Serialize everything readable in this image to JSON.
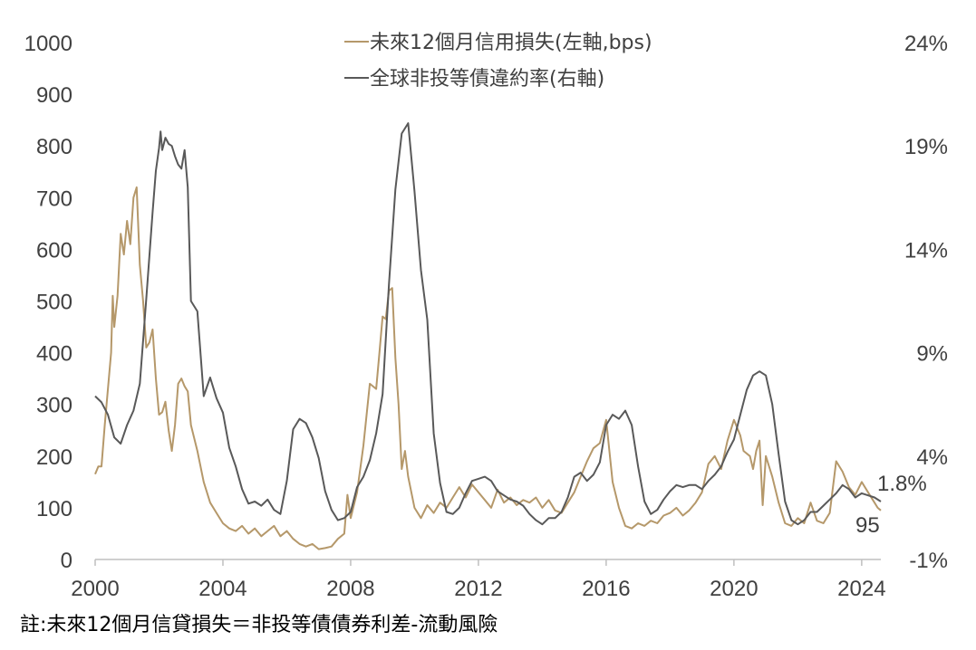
{
  "chart_data": {
    "type": "line",
    "title": "",
    "y_left": {
      "min": 0,
      "max": 1000,
      "ticks": [
        "0",
        "100",
        "200",
        "300",
        "400",
        "500",
        "600",
        "700",
        "800",
        "900",
        "1000"
      ]
    },
    "y_right": {
      "min": -1,
      "max": 24,
      "ticks": [
        "-1%",
        "4%",
        "9%",
        "14%",
        "19%",
        "24%"
      ]
    },
    "x_ticks": [
      "2000",
      "2004",
      "2008",
      "2012",
      "2016",
      "2020",
      "2024"
    ],
    "x_range": [
      2000,
      2024.6
    ],
    "grid": false,
    "legend_position": "top-center",
    "colors": {
      "credit_loss": "#b5986a",
      "default_rate": "#595959"
    },
    "end_labels": {
      "default_rate": "1.8%",
      "credit_loss": "95"
    },
    "series": [
      {
        "key": "credit_loss",
        "name": "未來12個月信用損失(左軸,bps)",
        "axis": "left",
        "points": [
          [
            2000.0,
            165
          ],
          [
            2000.1,
            180
          ],
          [
            2000.2,
            180
          ],
          [
            2000.3,
            260
          ],
          [
            2000.4,
            330
          ],
          [
            2000.5,
            400
          ],
          [
            2000.55,
            510
          ],
          [
            2000.6,
            450
          ],
          [
            2000.7,
            510
          ],
          [
            2000.8,
            630
          ],
          [
            2000.9,
            590
          ],
          [
            2001.0,
            655
          ],
          [
            2001.1,
            610
          ],
          [
            2001.2,
            700
          ],
          [
            2001.3,
            720
          ],
          [
            2001.4,
            570
          ],
          [
            2001.5,
            500
          ],
          [
            2001.6,
            410
          ],
          [
            2001.7,
            420
          ],
          [
            2001.8,
            445
          ],
          [
            2001.9,
            350
          ],
          [
            2002.0,
            280
          ],
          [
            2002.1,
            285
          ],
          [
            2002.2,
            305
          ],
          [
            2002.3,
            250
          ],
          [
            2002.4,
            210
          ],
          [
            2002.5,
            260
          ],
          [
            2002.6,
            340
          ],
          [
            2002.7,
            350
          ],
          [
            2002.8,
            335
          ],
          [
            2002.9,
            325
          ],
          [
            2003.0,
            260
          ],
          [
            2003.2,
            210
          ],
          [
            2003.4,
            150
          ],
          [
            2003.6,
            110
          ],
          [
            2003.8,
            90
          ],
          [
            2004.0,
            70
          ],
          [
            2004.2,
            60
          ],
          [
            2004.4,
            55
          ],
          [
            2004.6,
            65
          ],
          [
            2004.8,
            50
          ],
          [
            2005.0,
            60
          ],
          [
            2005.2,
            45
          ],
          [
            2005.4,
            55
          ],
          [
            2005.6,
            65
          ],
          [
            2005.8,
            45
          ],
          [
            2006.0,
            55
          ],
          [
            2006.2,
            40
          ],
          [
            2006.4,
            30
          ],
          [
            2006.6,
            25
          ],
          [
            2006.8,
            30
          ],
          [
            2007.0,
            20
          ],
          [
            2007.2,
            22
          ],
          [
            2007.4,
            25
          ],
          [
            2007.6,
            40
          ],
          [
            2007.8,
            50
          ],
          [
            2007.9,
            125
          ],
          [
            2008.0,
            80
          ],
          [
            2008.2,
            130
          ],
          [
            2008.4,
            220
          ],
          [
            2008.6,
            340
          ],
          [
            2008.8,
            330
          ],
          [
            2008.9,
            400
          ],
          [
            2009.0,
            470
          ],
          [
            2009.1,
            465
          ],
          [
            2009.2,
            520
          ],
          [
            2009.3,
            525
          ],
          [
            2009.4,
            390
          ],
          [
            2009.5,
            300
          ],
          [
            2009.6,
            175
          ],
          [
            2009.7,
            210
          ],
          [
            2009.8,
            160
          ],
          [
            2010.0,
            100
          ],
          [
            2010.2,
            80
          ],
          [
            2010.4,
            105
          ],
          [
            2010.6,
            90
          ],
          [
            2010.8,
            110
          ],
          [
            2011.0,
            100
          ],
          [
            2011.2,
            120
          ],
          [
            2011.4,
            140
          ],
          [
            2011.6,
            120
          ],
          [
            2011.8,
            145
          ],
          [
            2012.0,
            130
          ],
          [
            2012.2,
            115
          ],
          [
            2012.4,
            100
          ],
          [
            2012.6,
            135
          ],
          [
            2012.8,
            110
          ],
          [
            2013.0,
            120
          ],
          [
            2013.2,
            105
          ],
          [
            2013.4,
            115
          ],
          [
            2013.6,
            110
          ],
          [
            2013.8,
            120
          ],
          [
            2014.0,
            100
          ],
          [
            2014.2,
            115
          ],
          [
            2014.4,
            95
          ],
          [
            2014.6,
            90
          ],
          [
            2014.8,
            110
          ],
          [
            2015.0,
            130
          ],
          [
            2015.2,
            160
          ],
          [
            2015.4,
            190
          ],
          [
            2015.6,
            215
          ],
          [
            2015.8,
            225
          ],
          [
            2016.0,
            270
          ],
          [
            2016.2,
            150
          ],
          [
            2016.4,
            100
          ],
          [
            2016.6,
            65
          ],
          [
            2016.8,
            60
          ],
          [
            2017.0,
            70
          ],
          [
            2017.2,
            65
          ],
          [
            2017.4,
            75
          ],
          [
            2017.6,
            70
          ],
          [
            2017.8,
            85
          ],
          [
            2018.0,
            90
          ],
          [
            2018.2,
            100
          ],
          [
            2018.4,
            85
          ],
          [
            2018.6,
            95
          ],
          [
            2018.8,
            110
          ],
          [
            2019.0,
            130
          ],
          [
            2019.2,
            185
          ],
          [
            2019.4,
            200
          ],
          [
            2019.6,
            175
          ],
          [
            2019.8,
            230
          ],
          [
            2020.0,
            270
          ],
          [
            2020.2,
            240
          ],
          [
            2020.3,
            210
          ],
          [
            2020.5,
            200
          ],
          [
            2020.6,
            175
          ],
          [
            2020.7,
            210
          ],
          [
            2020.8,
            230
          ],
          [
            2020.9,
            105
          ],
          [
            2021.0,
            200
          ],
          [
            2021.2,
            160
          ],
          [
            2021.4,
            110
          ],
          [
            2021.6,
            70
          ],
          [
            2021.8,
            65
          ],
          [
            2022.0,
            80
          ],
          [
            2022.2,
            70
          ],
          [
            2022.4,
            110
          ],
          [
            2022.6,
            75
          ],
          [
            2022.8,
            70
          ],
          [
            2023.0,
            90
          ],
          [
            2023.2,
            190
          ],
          [
            2023.4,
            170
          ],
          [
            2023.6,
            140
          ],
          [
            2023.8,
            125
          ],
          [
            2024.0,
            150
          ],
          [
            2024.2,
            130
          ],
          [
            2024.4,
            110
          ],
          [
            2024.5,
            100
          ],
          [
            2024.6,
            95
          ]
        ]
      },
      {
        "key": "default_rate",
        "name": "全球非投等債違約率(右軸)",
        "axis": "right",
        "points": [
          [
            2000.0,
            6.9
          ],
          [
            2000.2,
            6.6
          ],
          [
            2000.4,
            6.0
          ],
          [
            2000.6,
            4.9
          ],
          [
            2000.8,
            4.6
          ],
          [
            2001.0,
            5.5
          ],
          [
            2001.2,
            6.2
          ],
          [
            2001.4,
            7.5
          ],
          [
            2001.6,
            11.6
          ],
          [
            2001.8,
            15.8
          ],
          [
            2001.9,
            17.8
          ],
          [
            2002.0,
            18.9
          ],
          [
            2002.05,
            19.7
          ],
          [
            2002.1,
            18.8
          ],
          [
            2002.2,
            19.4
          ],
          [
            2002.3,
            19.1
          ],
          [
            2002.4,
            19.0
          ],
          [
            2002.5,
            18.5
          ],
          [
            2002.6,
            18.1
          ],
          [
            2002.7,
            17.9
          ],
          [
            2002.8,
            18.8
          ],
          [
            2002.9,
            17.0
          ],
          [
            2003.0,
            11.5
          ],
          [
            2003.2,
            11.0
          ],
          [
            2003.4,
            6.9
          ],
          [
            2003.6,
            7.8
          ],
          [
            2003.8,
            6.8
          ],
          [
            2004.0,
            6.1
          ],
          [
            2004.2,
            4.4
          ],
          [
            2004.4,
            3.5
          ],
          [
            2004.6,
            2.4
          ],
          [
            2004.8,
            1.7
          ],
          [
            2005.0,
            1.8
          ],
          [
            2005.2,
            1.6
          ],
          [
            2005.4,
            1.9
          ],
          [
            2005.6,
            1.4
          ],
          [
            2005.8,
            1.2
          ],
          [
            2006.0,
            2.8
          ],
          [
            2006.2,
            5.3
          ],
          [
            2006.4,
            5.8
          ],
          [
            2006.6,
            5.6
          ],
          [
            2006.8,
            4.9
          ],
          [
            2007.0,
            3.9
          ],
          [
            2007.2,
            2.3
          ],
          [
            2007.4,
            1.4
          ],
          [
            2007.6,
            0.9
          ],
          [
            2007.8,
            1.0
          ],
          [
            2008.0,
            1.3
          ],
          [
            2008.2,
            2.5
          ],
          [
            2008.4,
            3.0
          ],
          [
            2008.6,
            3.8
          ],
          [
            2008.8,
            5.1
          ],
          [
            2009.0,
            7.0
          ],
          [
            2009.2,
            12.3
          ],
          [
            2009.4,
            16.9
          ],
          [
            2009.6,
            19.6
          ],
          [
            2009.8,
            20.1
          ],
          [
            2010.0,
            16.8
          ],
          [
            2010.2,
            13.0
          ],
          [
            2010.4,
            10.6
          ],
          [
            2010.6,
            5.1
          ],
          [
            2010.8,
            2.7
          ],
          [
            2011.0,
            1.3
          ],
          [
            2011.2,
            1.2
          ],
          [
            2011.4,
            1.5
          ],
          [
            2011.6,
            2.2
          ],
          [
            2011.8,
            2.8
          ],
          [
            2012.0,
            2.9
          ],
          [
            2012.2,
            3.0
          ],
          [
            2012.4,
            2.8
          ],
          [
            2012.6,
            2.3
          ],
          [
            2012.8,
            2.1
          ],
          [
            2013.0,
            1.9
          ],
          [
            2013.2,
            1.8
          ],
          [
            2013.4,
            1.6
          ],
          [
            2013.6,
            1.2
          ],
          [
            2013.8,
            0.9
          ],
          [
            2014.0,
            0.7
          ],
          [
            2014.2,
            1.0
          ],
          [
            2014.4,
            1.0
          ],
          [
            2014.6,
            1.3
          ],
          [
            2014.8,
            2.0
          ],
          [
            2015.0,
            3.0
          ],
          [
            2015.2,
            3.2
          ],
          [
            2015.4,
            2.8
          ],
          [
            2015.6,
            3.1
          ],
          [
            2015.8,
            3.7
          ],
          [
            2016.0,
            5.5
          ],
          [
            2016.2,
            6.0
          ],
          [
            2016.4,
            5.8
          ],
          [
            2016.6,
            6.2
          ],
          [
            2016.8,
            5.5
          ],
          [
            2017.0,
            3.5
          ],
          [
            2017.2,
            1.8
          ],
          [
            2017.4,
            1.2
          ],
          [
            2017.6,
            1.4
          ],
          [
            2017.8,
            1.9
          ],
          [
            2018.0,
            2.3
          ],
          [
            2018.2,
            2.6
          ],
          [
            2018.4,
            2.5
          ],
          [
            2018.6,
            2.6
          ],
          [
            2018.8,
            2.6
          ],
          [
            2019.0,
            2.4
          ],
          [
            2019.2,
            2.8
          ],
          [
            2019.4,
            3.1
          ],
          [
            2019.6,
            3.5
          ],
          [
            2019.8,
            4.2
          ],
          [
            2020.0,
            4.8
          ],
          [
            2020.2,
            6.0
          ],
          [
            2020.4,
            7.2
          ],
          [
            2020.6,
            7.9
          ],
          [
            2020.8,
            8.1
          ],
          [
            2021.0,
            7.9
          ],
          [
            2021.2,
            6.5
          ],
          [
            2021.4,
            4.1
          ],
          [
            2021.6,
            1.8
          ],
          [
            2021.8,
            0.9
          ],
          [
            2022.0,
            0.7
          ],
          [
            2022.2,
            0.9
          ],
          [
            2022.4,
            1.3
          ],
          [
            2022.6,
            1.3
          ],
          [
            2022.8,
            1.6
          ],
          [
            2023.0,
            1.9
          ],
          [
            2023.2,
            2.2
          ],
          [
            2023.4,
            2.6
          ],
          [
            2023.6,
            2.4
          ],
          [
            2023.8,
            2.0
          ],
          [
            2024.0,
            2.2
          ],
          [
            2024.2,
            2.1
          ],
          [
            2024.4,
            2.0
          ],
          [
            2024.6,
            1.8
          ]
        ]
      }
    ]
  },
  "footnote": "註:未來12個月信貸損失＝非投等債債券利差-流動風險"
}
